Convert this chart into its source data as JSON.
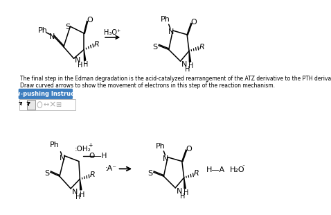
{
  "bg_color": "#ffffff",
  "text_color": "#000000",
  "description_line1": "The final step in the Edman degradation is the acid-catalyzed rearrangement of the ATZ derivative to the PTH derivative.",
  "description_line2": "Draw curved arrows to show the movement of electrons in this step of the reaction mechanism.",
  "arrow_button_text": "Arrow-pushing Instructions",
  "arrow_button_bg": "#3d7ebf",
  "arrow_button_text_color": "#ffffff",
  "h3o_label": "H₃O⁺",
  "colon_a_label": ":A⁻",
  "ha_label": "H—A",
  "h2o_label": "H₂O"
}
